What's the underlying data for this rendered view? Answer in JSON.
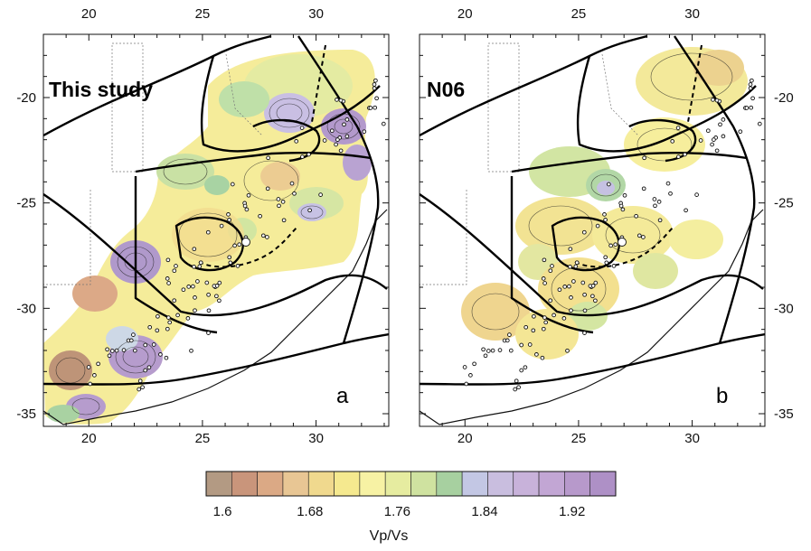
{
  "panels": [
    {
      "id": "a",
      "title": "This study",
      "letter": "a",
      "x_ticks": [
        "20",
        "25",
        "30"
      ],
      "y_ticks": [
        "-20",
        "-25",
        "-30",
        "-35"
      ]
    },
    {
      "id": "b",
      "title": "N06",
      "letter": "b",
      "x_ticks": [
        "20",
        "25",
        "30"
      ],
      "y_ticks": [
        "-20",
        "-25",
        "-30",
        "-35"
      ]
    }
  ],
  "colorbar": {
    "title": "Vp/Vs",
    "labels": [
      "1.6",
      "1.68",
      "1.76",
      "1.84",
      "1.92"
    ],
    "colors": [
      "#b39a83",
      "#c9957b",
      "#dba985",
      "#e8c694",
      "#f0d98e",
      "#f5e98f",
      "#f7f2a4",
      "#e6eca0",
      "#cfe2a0",
      "#a7d0a0",
      "#c3c7e4",
      "#c9bedf",
      "#c8b2da",
      "#c2a6d4",
      "#b799cb",
      "#ae90c6"
    ]
  }
}
